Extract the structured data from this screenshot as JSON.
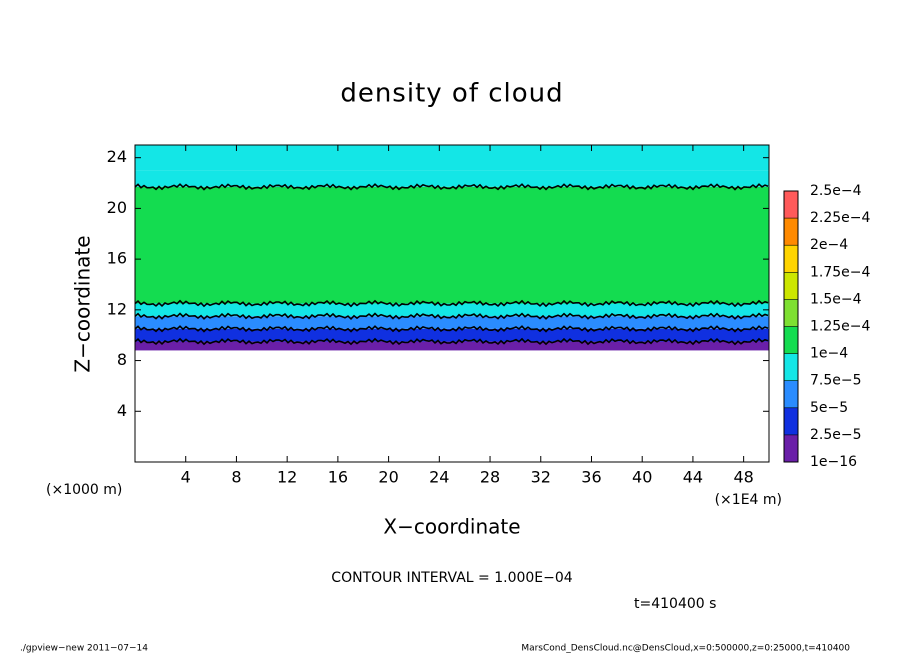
{
  "chart_data": {
    "type": "heatmap",
    "title": "density of cloud",
    "xlabel": "X−coordinate",
    "ylabel": "Z−coordinate",
    "x_unit_left": "(×1000 m)",
    "x_unit_right": "(×1E4 m)",
    "xlim": [
      0,
      50
    ],
    "xticks": [
      4,
      8,
      12,
      16,
      20,
      24,
      28,
      32,
      36,
      40,
      44,
      48
    ],
    "ylim": [
      0,
      25
    ],
    "yticks": [
      4,
      8,
      12,
      16,
      20,
      24
    ],
    "y_edges": [
      8.8,
      9.5,
      10.5,
      11.5,
      12.5,
      21.7,
      23,
      25
    ],
    "values": [
      1.5e-05,
      3.5e-05,
      6e-05,
      8.5e-05,
      0.00011,
      9.5e-05,
      8e-05
    ],
    "colorbar_ticks": [
      {
        "value": 1e-16,
        "label": "1e−16"
      },
      {
        "value": 2.5e-05,
        "label": "2.5e−5"
      },
      {
        "value": 5e-05,
        "label": "5e−5"
      },
      {
        "value": 7.5e-05,
        "label": "7.5e−5"
      },
      {
        "value": 0.0001,
        "label": "1e−4"
      },
      {
        "value": 0.000125,
        "label": "1.25e−4"
      },
      {
        "value": 0.00015,
        "label": "1.5e−4"
      },
      {
        "value": 0.000175,
        "label": "1.75e−4"
      },
      {
        "value": 0.0002,
        "label": "2e−4"
      },
      {
        "value": 0.000225,
        "label": "2.25e−4"
      },
      {
        "value": 0.00025,
        "label": "2.5e−4"
      }
    ],
    "colorbar_colors": [
      "#6a1fa8",
      "#1030e0",
      "#2a8cff",
      "#14e6e6",
      "#14dc50",
      "#7ee032",
      "#cce600",
      "#ffd400",
      "#ff8a00",
      "#ff5a5a"
    ],
    "contour_interval_text": "CONTOUR INTERVAL = 1.000E−04",
    "time_text": "t=410400 s",
    "footer_left": "./gpview−new   2011−07−14",
    "footer_right": "MarsCond_DensCloud.nc@DensCloud,x=0:500000,z=0:25000,t=410400"
  }
}
